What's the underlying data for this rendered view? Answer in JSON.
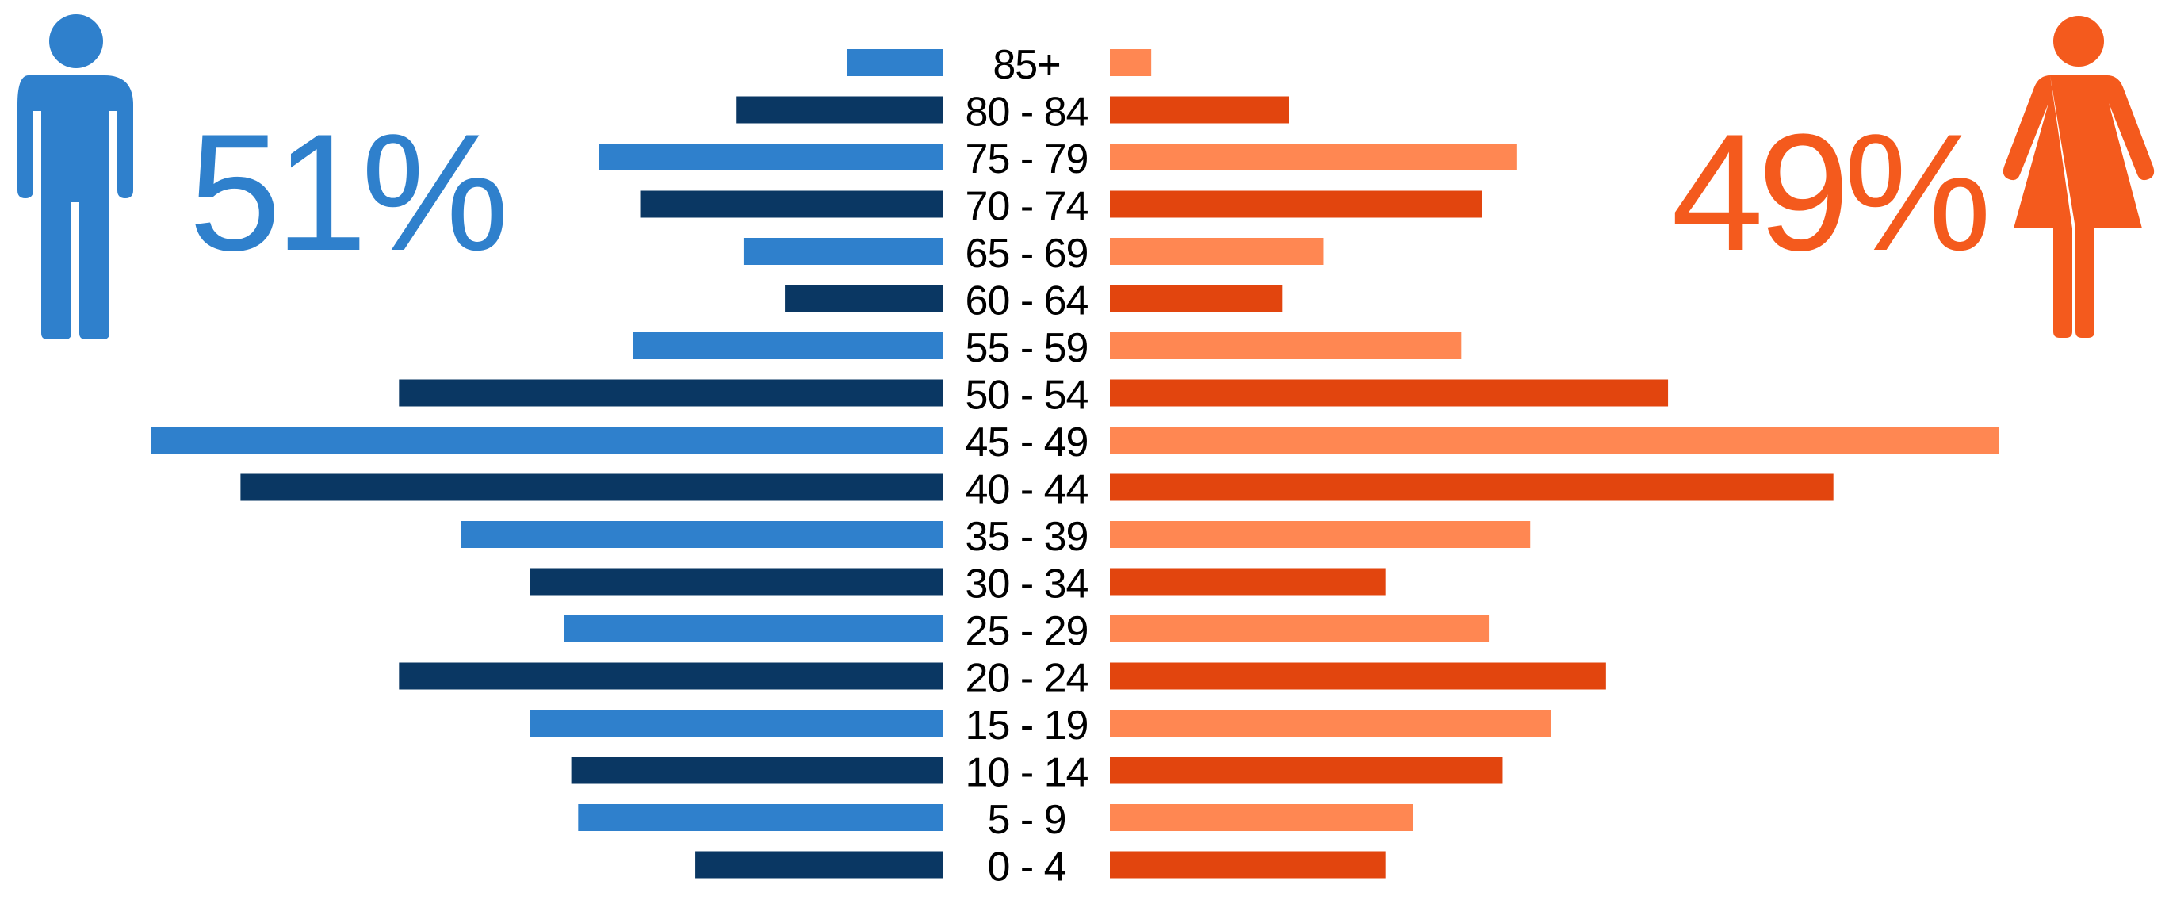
{
  "chart_data": {
    "type": "bar",
    "orientation": "population-pyramid",
    "categories": [
      "85+",
      "80 - 84",
      "75 - 79",
      "70 - 74",
      "65 - 69",
      "60 - 64",
      "55 - 59",
      "50 - 54",
      "45 - 49",
      "40 - 44",
      "35 - 39",
      "30 - 34",
      "25 - 29",
      "20 - 24",
      "15 - 19",
      "10 - 14",
      "5 - 9",
      "0 - 4"
    ],
    "series": [
      {
        "side": "left",
        "values": [
          14,
          30,
          50,
          44,
          29,
          23,
          45,
          79,
          115,
          102,
          70,
          60,
          55,
          79,
          60,
          54,
          53,
          36
        ],
        "colors": [
          "#2f80cc",
          "#0a3763"
        ]
      },
      {
        "side": "right",
        "values": [
          6,
          26,
          59,
          54,
          31,
          25,
          51,
          81,
          129,
          105,
          61,
          40,
          55,
          72,
          64,
          57,
          44,
          40
        ],
        "colors": [
          "#ff8752",
          "#e2450e"
        ]
      }
    ],
    "xlim": [
      0,
      130
    ],
    "grid": false,
    "legend": "none"
  },
  "male": {
    "percent": "51%",
    "icon": "male-person-icon",
    "color": "#2f80cc"
  },
  "female": {
    "percent": "49%",
    "icon": "female-person-icon",
    "color": "#f45a1d"
  }
}
